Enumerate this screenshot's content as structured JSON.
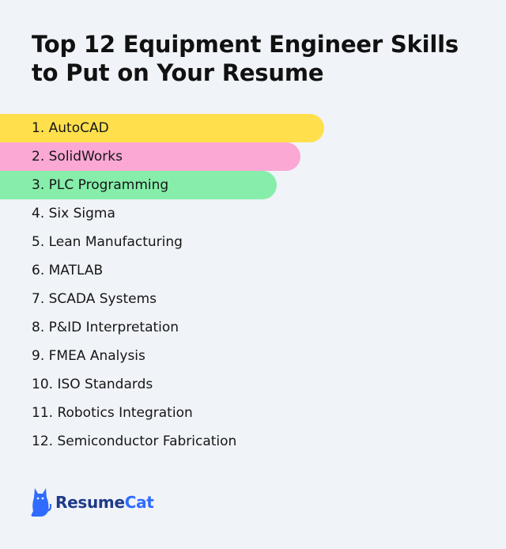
{
  "title": "Top 12 Equipment Engineer Skills to Put on Your Resume",
  "skills": [
    {
      "label": "1. AutoCAD",
      "highlight": "#ffe04c"
    },
    {
      "label": "2. SolidWorks",
      "highlight": "#fba8d4"
    },
    {
      "label": "3. PLC Programming",
      "highlight": "#86eeaa"
    },
    {
      "label": "4. Six Sigma"
    },
    {
      "label": "5. Lean Manufacturing"
    },
    {
      "label": "6. MATLAB"
    },
    {
      "label": "7. SCADA Systems"
    },
    {
      "label": "8. P&ID Interpretation"
    },
    {
      "label": "9. FMEA Analysis"
    },
    {
      "label": "10. ISO Standards"
    },
    {
      "label": "11. Robotics Integration"
    },
    {
      "label": "12. Semiconductor Fabrication"
    }
  ],
  "logo": {
    "part1": "Resume",
    "part2": "Cat",
    "icon": "cat-icon",
    "color_dark": "#1f3a8a",
    "color_accent": "#2f6bff"
  }
}
